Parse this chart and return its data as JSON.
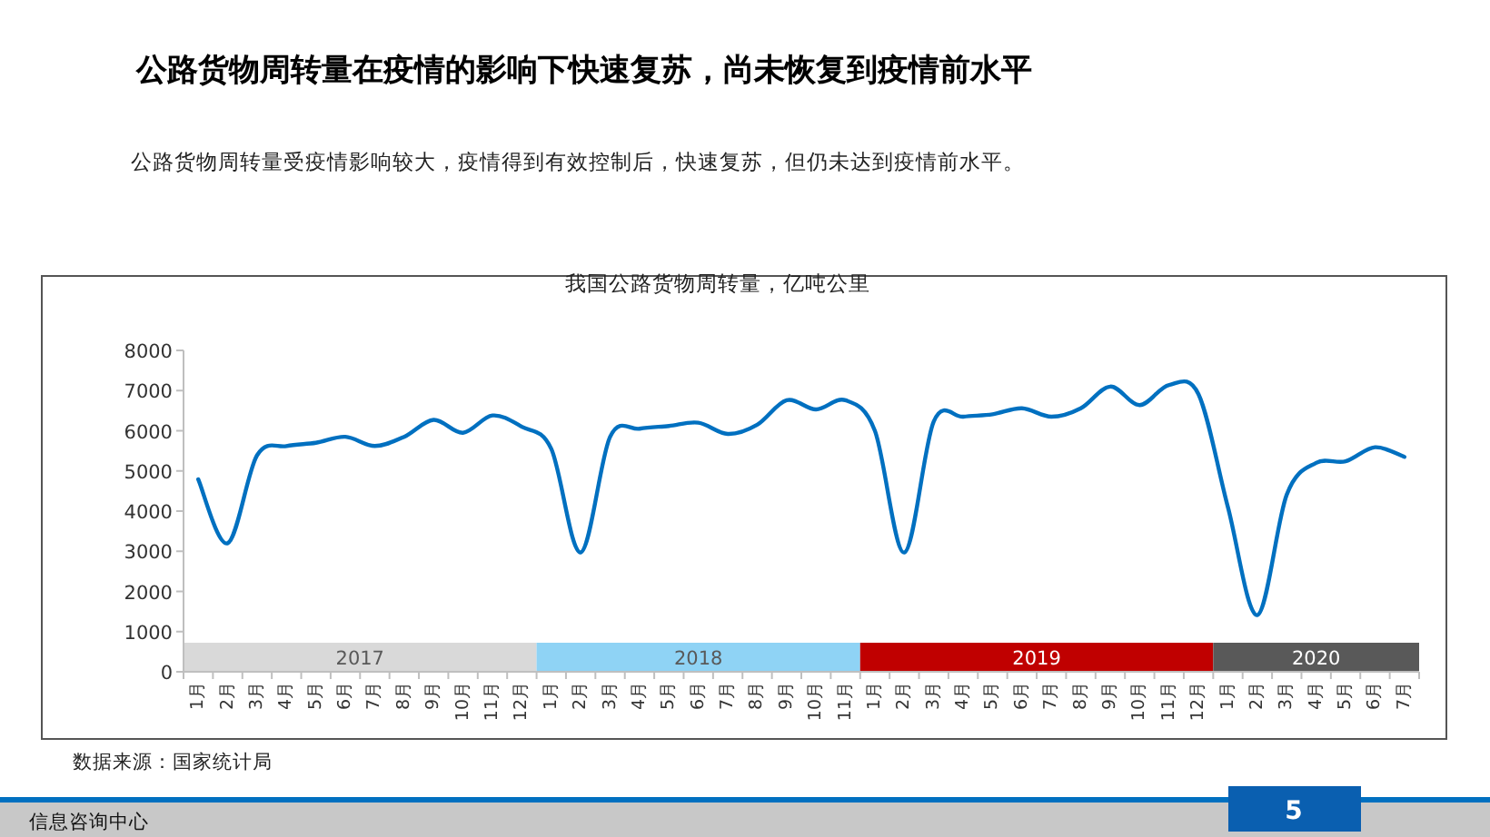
{
  "chart_data": {
    "type": "line",
    "title": "公路货物周转量在疫情的影响下快速复苏，尚未恢复到疫情前水平",
    "subtitle": "公路货物周转量受疫情影响较大，疫情得到有效控制后，快速复苏，但仍未达到疫情前水平。",
    "annotations": [
      "我国公路货物周转量，亿吨公里",
      "数据来源：国家统计局",
      "信息咨询中心",
      "5",
      "2017",
      "2018",
      "2019",
      "2020"
    ],
    "categories": [
      "1月",
      "2月",
      "3月",
      "4月",
      "5月",
      "6月",
      "7月",
      "8月",
      "9月",
      "10月",
      "11月",
      "12月",
      "1月",
      "2月",
      "3月",
      "4月",
      "5月",
      "6月",
      "7月",
      "8月",
      "9月",
      "10月",
      "11月",
      "1月",
      "2月",
      "3月",
      "4月",
      "5月",
      "6月",
      "7月",
      "8月",
      "9月",
      "10月",
      "11月",
      "12月",
      "1月",
      "2月",
      "3月",
      "4月",
      "5月",
      "6月",
      "7月"
    ],
    "series": [
      {
        "color": "#0070c0",
        "values": [
          4790,
          3200,
          5390,
          5620,
          5700,
          5850,
          5620,
          5850,
          6270,
          5950,
          6380,
          6100,
          5550,
          2970,
          5850,
          6050,
          6120,
          6200,
          5920,
          6150,
          6760,
          6530,
          6760,
          6000,
          2970,
          6230,
          6350,
          6410,
          6560,
          6350,
          6560,
          7100,
          6640,
          7140,
          6910,
          4100,
          1410,
          4410,
          5200,
          5240,
          5590,
          5350
        ]
      }
    ],
    "ylim": [
      0,
      8000
    ],
    "yticks": [
      0,
      1000,
      2000,
      3000,
      4000,
      5000,
      6000,
      7000,
      8000
    ],
    "grid": false,
    "marker": "none",
    "line_style": "solid"
  }
}
